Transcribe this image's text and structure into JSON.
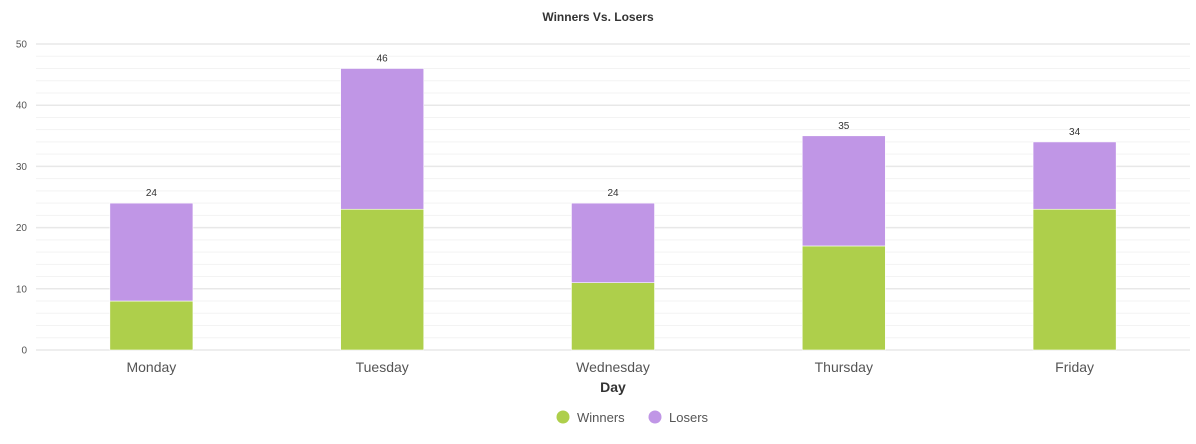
{
  "chart_data": {
    "type": "bar",
    "stacked": true,
    "title": "Winners Vs. Losers",
    "xlabel": "Day",
    "ylabel": "",
    "categories": [
      "Monday",
      "Tuesday",
      "Wednesday",
      "Thursday",
      "Friday"
    ],
    "series": [
      {
        "name": "Winners",
        "values": [
          8,
          23,
          11,
          17,
          23
        ],
        "color": "#aecf4b"
      },
      {
        "name": "Losers",
        "values": [
          16,
          23,
          13,
          18,
          11
        ],
        "color": "#c096e6"
      }
    ],
    "totals": [
      24,
      46,
      24,
      35,
      34
    ],
    "ylim": [
      0,
      50
    ],
    "yticks": [
      0,
      10,
      20,
      30,
      40,
      50
    ],
    "grid": true,
    "legend_position": "bottom-center"
  }
}
